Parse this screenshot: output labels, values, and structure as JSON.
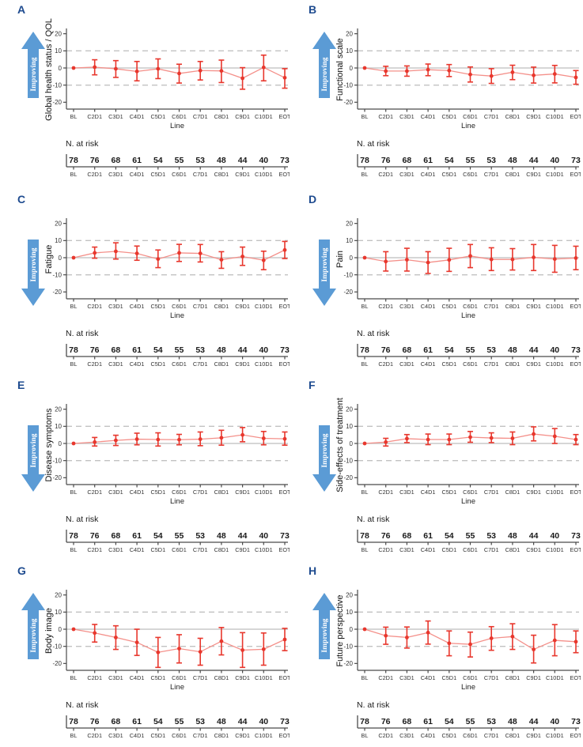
{
  "figure": {
    "improving_label": "Improving",
    "n_at_risk_label": "N. at risk",
    "xlabel": "Line",
    "categories": [
      "BL",
      "C2D1",
      "C3D1",
      "C4D1",
      "C5D1",
      "C6D1",
      "C7D1",
      "C8D1",
      "C9D1",
      "C10D1",
      "EOT"
    ],
    "n_at_risk": [
      78,
      76,
      68,
      61,
      54,
      55,
      53,
      48,
      44,
      40,
      73
    ],
    "colors": {
      "panel_letter": "#1e4b8f",
      "arrow_fill": "#5b9bd5",
      "arrow_text": "#ffffff",
      "error_bar": "#e8372d",
      "mean_line": "#f4908a",
      "zero_line": "#c8c8c8",
      "dashed_gridline": "#c2c2c2",
      "axis": "#4a4a4a",
      "tick_text": "#333333"
    }
  },
  "chart_data": [
    {
      "panel": "A",
      "type": "line",
      "ylabel": "Global health status / QOL",
      "improving_direction": "up",
      "xlabel": "Line",
      "ylim": [
        -20,
        20
      ],
      "yticks": [
        20,
        10,
        0,
        -10,
        -20
      ],
      "dashed_gridlines": [
        10,
        -10
      ],
      "categories": [
        "BL",
        "C2D1",
        "C3D1",
        "C4D1",
        "C5D1",
        "C6D1",
        "C7D1",
        "C8D1",
        "C9D1",
        "C10D1",
        "EOT"
      ],
      "mean": [
        0,
        0.5,
        -0.5,
        -2,
        -0.5,
        -3.2,
        -1.5,
        -1.7,
        -6,
        0.3,
        -5.7
      ],
      "lower": [
        0,
        -4,
        -5.5,
        -7.5,
        -6.2,
        -8.8,
        -7,
        -8.5,
        -12.4,
        -7.5,
        -11.8
      ],
      "upper": [
        0,
        4.8,
        4.3,
        3.8,
        5.3,
        2.2,
        3.8,
        4.6,
        0.2,
        7.5,
        -0.4
      ]
    },
    {
      "panel": "B",
      "type": "line",
      "ylabel": "Functional scale",
      "improving_direction": "up",
      "xlabel": "Line",
      "ylim": [
        -20,
        20
      ],
      "yticks": [
        20,
        10,
        0,
        -10,
        -20
      ],
      "dashed_gridlines": [
        10,
        -10
      ],
      "categories": [
        "BL",
        "C2D1",
        "C3D1",
        "C4D1",
        "C5D1",
        "C6D1",
        "C7D1",
        "C8D1",
        "C9D1",
        "C10D1",
        "EOT"
      ],
      "mean": [
        0,
        -1.8,
        -1.8,
        -1,
        -1.5,
        -3.8,
        -4.7,
        -2.5,
        -4.3,
        -3.5,
        -5.5
      ],
      "lower": [
        0,
        -4.5,
        -4.8,
        -4.5,
        -5,
        -8.2,
        -9,
        -6.8,
        -8.8,
        -8.7,
        -9.5
      ],
      "upper": [
        0,
        1,
        1.2,
        2.3,
        2,
        0.6,
        -0.4,
        1.6,
        0.5,
        1.5,
        -1.5
      ]
    },
    {
      "panel": "C",
      "type": "line",
      "ylabel": "Fatigue",
      "improving_direction": "down",
      "xlabel": "Line",
      "ylim": [
        -20,
        20
      ],
      "yticks": [
        20,
        10,
        0,
        -10,
        -20
      ],
      "dashed_gridlines": [
        10,
        -10
      ],
      "categories": [
        "BL",
        "C2D1",
        "C3D1",
        "C4D1",
        "C5D1",
        "C6D1",
        "C7D1",
        "C8D1",
        "C9D1",
        "C10D1",
        "EOT"
      ],
      "mean": [
        0,
        2.8,
        3.7,
        2.5,
        -0.8,
        2.8,
        2.5,
        -1.2,
        0.7,
        -1.5,
        4.5
      ],
      "lower": [
        0,
        -0.3,
        -0.8,
        -1.5,
        -5.8,
        -2.2,
        -2.5,
        -6.2,
        -4.5,
        -7,
        -0.5
      ],
      "upper": [
        0,
        6.2,
        8.7,
        6.8,
        4.5,
        7.8,
        7.7,
        3.5,
        6.2,
        3.8,
        9.5
      ]
    },
    {
      "panel": "D",
      "type": "line",
      "ylabel": "Pain",
      "improving_direction": "down",
      "xlabel": "Line",
      "ylim": [
        -20,
        20
      ],
      "yticks": [
        20,
        10,
        0,
        -10,
        -20
      ],
      "dashed_gridlines": [
        10,
        -10
      ],
      "categories": [
        "BL",
        "C2D1",
        "C3D1",
        "C4D1",
        "C5D1",
        "C6D1",
        "C7D1",
        "C8D1",
        "C9D1",
        "C10D1",
        "EOT"
      ],
      "mean": [
        0,
        -2.2,
        -1.2,
        -2.8,
        -1.3,
        1,
        -1,
        -1,
        0.2,
        -0.8,
        -0.2
      ],
      "lower": [
        0,
        -7.8,
        -7.8,
        -9.2,
        -8,
        -5.8,
        -7.5,
        -7.2,
        -7.5,
        -8.5,
        -7
      ],
      "upper": [
        0,
        3.5,
        5.5,
        3.5,
        5.5,
        7.7,
        5.8,
        5.3,
        7.7,
        7.2,
        6.7
      ]
    },
    {
      "panel": "E",
      "type": "line",
      "ylabel": "Disease symptoms",
      "improving_direction": "down",
      "xlabel": "Line",
      "ylim": [
        -20,
        20
      ],
      "yticks": [
        20,
        10,
        0,
        -10,
        -20
      ],
      "dashed_gridlines": [
        10,
        -10
      ],
      "categories": [
        "BL",
        "C2D1",
        "C3D1",
        "C4D1",
        "C5D1",
        "C6D1",
        "C7D1",
        "C8D1",
        "C9D1",
        "C10D1",
        "EOT"
      ],
      "mean": [
        0,
        0.8,
        1.8,
        2.5,
        2.3,
        2.2,
        2.5,
        3.3,
        5,
        3,
        2.7
      ],
      "lower": [
        0,
        -1.5,
        -1.2,
        -0.8,
        -1.5,
        -0.8,
        -1.3,
        -1,
        1,
        -0.8,
        -1
      ],
      "upper": [
        0,
        3.5,
        4.8,
        6,
        6.2,
        5.3,
        6.7,
        7.7,
        9.3,
        7,
        6.7
      ]
    },
    {
      "panel": "F",
      "type": "line",
      "ylabel": "Side-effects of treatment",
      "improving_direction": "down",
      "xlabel": "Line",
      "ylim": [
        -20,
        20
      ],
      "yticks": [
        20,
        10,
        0,
        -10,
        -20
      ],
      "dashed_gridlines": [
        10,
        -10
      ],
      "categories": [
        "BL",
        "C2D1",
        "C3D1",
        "C4D1",
        "C5D1",
        "C6D1",
        "C7D1",
        "C8D1",
        "C9D1",
        "C10D1",
        "EOT"
      ],
      "mean": [
        0,
        0.8,
        2.8,
        2.3,
        2.3,
        3.7,
        3.2,
        3,
        5.5,
        4.2,
        2.3
      ],
      "lower": [
        0,
        -1.5,
        0.5,
        -0.7,
        -0.7,
        0.7,
        0.5,
        -0.7,
        1.5,
        0,
        -0.7
      ],
      "upper": [
        0,
        3,
        5.2,
        5.5,
        5.5,
        7,
        6.2,
        6.7,
        9.7,
        8.7,
        5.2
      ]
    },
    {
      "panel": "G",
      "type": "line",
      "ylabel": "Body image",
      "improving_direction": "up",
      "xlabel": "Line",
      "ylim": [
        -20,
        20
      ],
      "yticks": [
        20,
        10,
        0,
        -10,
        -20
      ],
      "dashed_gridlines": [
        10,
        -10
      ],
      "categories": [
        "BL",
        "C2D1",
        "C3D1",
        "C4D1",
        "C5D1",
        "C6D1",
        "C7D1",
        "C8D1",
        "C9D1",
        "C10D1",
        "EOT"
      ],
      "mean": [
        0,
        -2.2,
        -4.8,
        -7.7,
        -13.5,
        -11.3,
        -13.2,
        -7,
        -12.2,
        -11.7,
        -6
      ],
      "lower": [
        0,
        -7.5,
        -11.8,
        -15.3,
        -22.3,
        -19.7,
        -21,
        -15,
        -22.3,
        -21,
        -12.5
      ],
      "upper": [
        0,
        2.8,
        2,
        0,
        -4.8,
        -3.2,
        -5.3,
        1,
        -2,
        -2.2,
        0.5
      ]
    },
    {
      "panel": "H",
      "type": "line",
      "ylabel": "Future perspective",
      "improving_direction": "up",
      "xlabel": "Line",
      "ylim": [
        -20,
        20
      ],
      "yticks": [
        20,
        10,
        0,
        -10,
        -20
      ],
      "dashed_gridlines": [
        10,
        -10
      ],
      "categories": [
        "BL",
        "C2D1",
        "C3D1",
        "C4D1",
        "C5D1",
        "C6D1",
        "C7D1",
        "C8D1",
        "C9D1",
        "C10D1",
        "EOT"
      ],
      "mean": [
        0,
        -3.8,
        -4.8,
        -2,
        -8.2,
        -8.8,
        -5.3,
        -4.3,
        -11.8,
        -6.5,
        -7.3
      ],
      "lower": [
        0,
        -8.8,
        -11,
        -8.7,
        -15.5,
        -16.2,
        -12.3,
        -11.8,
        -19.7,
        -15.5,
        -13.7
      ],
      "upper": [
        0,
        1.2,
        1.3,
        4.8,
        -1,
        -1.7,
        1.5,
        3.2,
        -3.5,
        2.7,
        -1
      ]
    }
  ]
}
